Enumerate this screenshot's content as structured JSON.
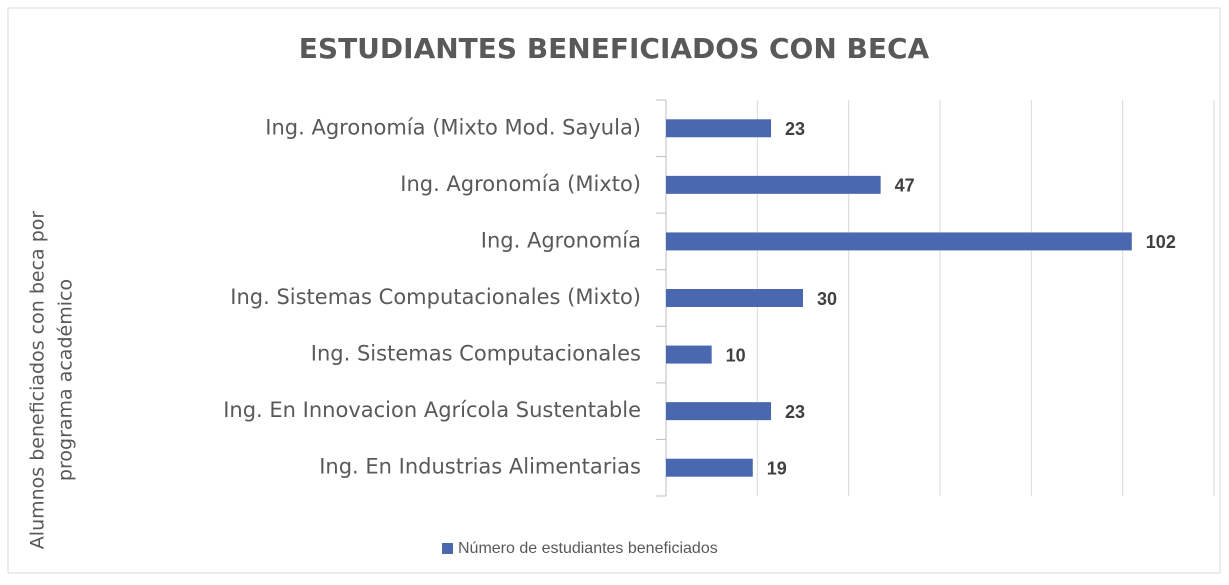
{
  "chart_data": {
    "type": "bar",
    "orientation": "horizontal",
    "title": "ESTUDIANTES BENEFICIADOS CON BECA",
    "ylabel": [
      "Alumnos beneficiados con beca por",
      "programa académico"
    ],
    "categories": [
      "Ing. Agronomía (Mixto Mod. Sayula)",
      "Ing. Agronomía (Mixto)",
      "Ing. Agronomía ",
      "Ing. Sistemas Computacionales (Mixto)",
      "Ing. Sistemas Computacionales ",
      "Ing. En Innovacion Agrícola Sustentable",
      "Ing. En Industrias Alimentarias"
    ],
    "series": [
      {
        "name": "Número de estudiantes beneficiados",
        "color": "#4a68b0",
        "values": [
          23,
          47,
          102,
          30,
          10,
          23,
          19
        ]
      }
    ],
    "xlim": [
      0,
      120
    ],
    "xticks": [
      0,
      20,
      40,
      60,
      80,
      100,
      120
    ],
    "grid": true,
    "legend": "bottom"
  }
}
